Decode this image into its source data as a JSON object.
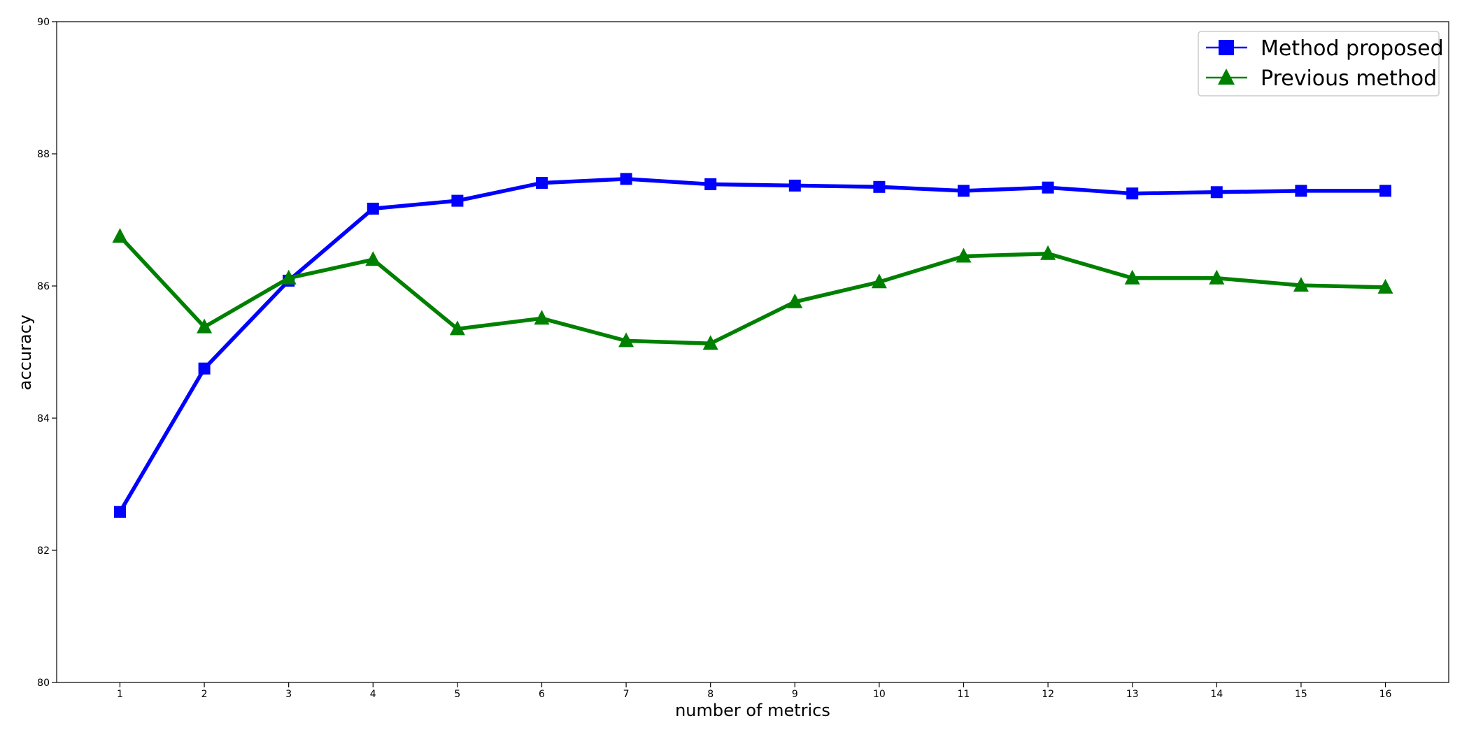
{
  "chart_data": {
    "type": "line",
    "title": "",
    "xlabel": "number of metrics",
    "ylabel": "accuracy",
    "x": [
      1,
      2,
      3,
      4,
      5,
      6,
      7,
      8,
      9,
      10,
      11,
      12,
      13,
      14,
      15,
      16
    ],
    "xticks": [
      "1",
      "2",
      "3",
      "4",
      "5",
      "6",
      "7",
      "8",
      "9",
      "10",
      "11",
      "12",
      "13",
      "14",
      "15",
      "16"
    ],
    "yticks": [
      "80",
      "82",
      "84",
      "86",
      "88",
      "90"
    ],
    "xlim": [
      0.25,
      16.75
    ],
    "ylim": [
      80,
      90
    ],
    "grid": false,
    "legend_position": "top-right",
    "series": [
      {
        "name": "Method proposed",
        "color": "#0000ff",
        "marker": "square",
        "values": [
          82.58,
          84.75,
          86.08,
          87.17,
          87.29,
          87.56,
          87.62,
          87.54,
          87.52,
          87.5,
          87.44,
          87.49,
          87.4,
          87.42,
          87.44,
          87.44
        ]
      },
      {
        "name": "Previous method",
        "color": "#008000",
        "marker": "triangle",
        "values": [
          86.75,
          85.38,
          86.12,
          86.4,
          85.35,
          85.51,
          85.17,
          85.13,
          85.76,
          86.06,
          86.45,
          86.49,
          86.12,
          86.12,
          86.01,
          85.98
        ]
      }
    ]
  }
}
